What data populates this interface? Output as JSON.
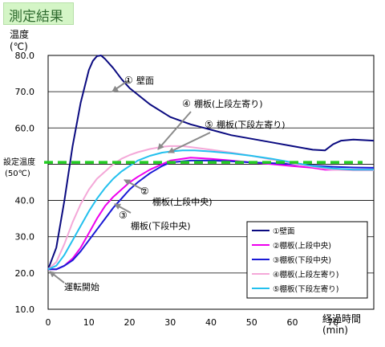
{
  "chart_data": {
    "type": "line",
    "title": "測定結果",
    "ylabel": "温度",
    "yunit": "(℃)",
    "xlabel": "経過時間",
    "xunit": "(min)",
    "xlim": [
      0,
      80
    ],
    "ylim": [
      10,
      80
    ],
    "xticks": [
      "0",
      "10",
      "20",
      "30",
      "40",
      "50",
      "60",
      "70"
    ],
    "yticks": [
      "10.0",
      "20.0",
      "30.0",
      "40.0",
      "50.0",
      "60.0",
      "70.0",
      "80.0"
    ],
    "grid": true,
    "legend_position": "bottom-right",
    "setpoint": {
      "value": 50.5,
      "label": [
        "設定温度",
        "(50℃)"
      ],
      "color": "#22cc22"
    },
    "series": [
      {
        "name": "①壁面",
        "color": "#0a0a80",
        "x": [
          0,
          2,
          4,
          6,
          8,
          10,
          11,
          12,
          13,
          14,
          16,
          18,
          20,
          25,
          30,
          35,
          40,
          45,
          50,
          55,
          60,
          65,
          68,
          70,
          72,
          75,
          80
        ],
        "y": [
          21,
          27,
          40,
          55,
          67,
          76,
          78.5,
          79.8,
          80,
          79,
          76.5,
          73.5,
          71,
          66.5,
          63,
          61,
          59.5,
          58,
          57,
          56,
          55,
          54,
          53.8,
          55.5,
          56.5,
          56.8,
          56.5
        ]
      },
      {
        "name": "②棚板(上段中央)",
        "color": "#ee00ee",
        "x": [
          0,
          2,
          4,
          6,
          8,
          10,
          12,
          14,
          16,
          18,
          20,
          22,
          25,
          28,
          30,
          35,
          40,
          45,
          50,
          55,
          60,
          65,
          68,
          70,
          75,
          80
        ],
        "y": [
          21,
          21,
          22,
          24,
          27,
          31,
          35,
          38.5,
          41,
          43,
          45,
          46.5,
          48.5,
          50,
          51,
          51.8,
          51.5,
          51,
          50.5,
          50,
          49.5,
          49,
          48.5,
          48.5,
          48.5,
          48.5
        ]
      },
      {
        "name": "③棚板(下段中央)",
        "color": "#1a1ad6",
        "x": [
          0,
          2,
          4,
          6,
          8,
          10,
          12,
          14,
          16,
          18,
          20,
          22,
          25,
          28,
          30,
          35,
          40,
          45,
          50,
          55,
          60,
          65,
          70,
          75,
          80
        ],
        "y": [
          21,
          21,
          22,
          23.5,
          26,
          29,
          32,
          35,
          38,
          40.5,
          43,
          45,
          47.5,
          49.5,
          50.5,
          51,
          51,
          50.8,
          50.5,
          50.3,
          50,
          49.6,
          49.3,
          49.1,
          49
        ]
      },
      {
        "name": "④棚板(上段左寄り)",
        "color": "#f4a8d8",
        "x": [
          0,
          2,
          4,
          6,
          8,
          10,
          12,
          14,
          16,
          18,
          20,
          22,
          25,
          28,
          30,
          33,
          36,
          40,
          45,
          50,
          55,
          60,
          65,
          70,
          75,
          80
        ],
        "y": [
          21,
          23,
          28,
          34,
          39,
          43,
          46,
          48,
          50,
          51.5,
          52.5,
          53.3,
          54.2,
          54.8,
          55,
          55,
          54.6,
          54,
          53.2,
          52.3,
          51.3,
          50.2,
          49.3,
          48.5,
          48.3,
          48.3
        ]
      },
      {
        "name": "⑤棚板(下段左寄り)",
        "color": "#22c0ee",
        "x": [
          0,
          2,
          4,
          6,
          8,
          10,
          12,
          14,
          16,
          18,
          20,
          22,
          25,
          28,
          30,
          33,
          36,
          40,
          45,
          50,
          55,
          60,
          65,
          70,
          75,
          80
        ],
        "y": [
          21,
          22,
          25,
          29,
          33,
          37,
          40.5,
          43.5,
          46,
          48,
          49.5,
          51,
          52.3,
          53.2,
          53.5,
          53.8,
          53.8,
          53.5,
          53,
          52.3,
          51.5,
          50.5,
          49.5,
          48.8,
          48.5,
          48.5
        ]
      }
    ],
    "annotations": [
      {
        "num": "①",
        "text": "壁面"
      },
      {
        "num": "④",
        "text": "棚板(上段左寄り)"
      },
      {
        "num": "⑤",
        "text": "棚板(下段左寄り)"
      },
      {
        "num": "②",
        "text": "棚板(上段中央)"
      },
      {
        "num": "③",
        "text": "棚板(下段中央)"
      },
      {
        "num": "",
        "text": "運転開始"
      }
    ]
  }
}
